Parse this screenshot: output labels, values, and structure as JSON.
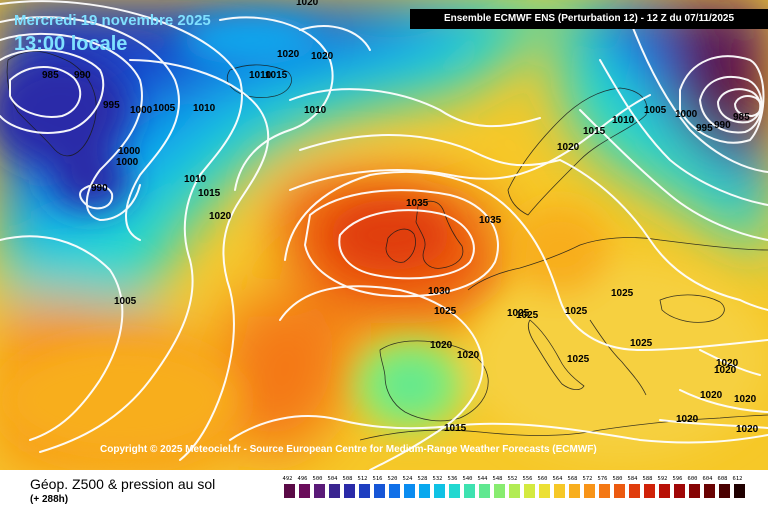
{
  "header": {
    "date_line": "Mercredi 19 novembre 2025",
    "local_time": "13:00 locale",
    "model_banner": "Ensemble ECMWF ENS  (Perturbation 12)  - 12 Z du 07/11/2025"
  },
  "copyright": "Copyright © 2025 Meteociel.fr - Source European Centre for Medium-Range Weather Forecasts (ECMWF)",
  "footer": {
    "product_title": "Géop. Z500 & pression au sol",
    "lead_time": "(+ 288h)"
  },
  "scale": {
    "values": [
      "492",
      "496",
      "500",
      "504",
      "508",
      "512",
      "516",
      "520",
      "524",
      "528",
      "532",
      "536",
      "540",
      "544",
      "548",
      "552",
      "556",
      "560",
      "564",
      "568",
      "572",
      "576",
      "580",
      "584",
      "588",
      "592",
      "596",
      "600",
      "604",
      "608",
      "612"
    ],
    "colors": [
      "#5a0a46",
      "#6a0c5a",
      "#5a1a78",
      "#3a2590",
      "#2a2aa8",
      "#1e3ec0",
      "#1656d6",
      "#1070e8",
      "#0a8cf0",
      "#08a8ee",
      "#10c2e4",
      "#22d8d0",
      "#3ee2b0",
      "#60e890",
      "#88ec70",
      "#b2ec54",
      "#d4ea40",
      "#ece034",
      "#f6c828",
      "#f8ae1e",
      "#f89418",
      "#f47814",
      "#ec5a10",
      "#e03c0c",
      "#d02208",
      "#b81006",
      "#a00606",
      "#860404",
      "#6a0202",
      "#4a0000",
      "#200000"
    ]
  },
  "map_labels": [
    {
      "text": "985"
    },
    {
      "text": "990"
    },
    {
      "text": "995"
    },
    {
      "text": "1000"
    },
    {
      "text": "1000"
    },
    {
      "text": "1000"
    },
    {
      "text": "990"
    },
    {
      "text": "1005"
    },
    {
      "text": "1010"
    },
    {
      "text": "1010"
    },
    {
      "text": "1015"
    },
    {
      "text": "1020"
    },
    {
      "text": "1020"
    },
    {
      "text": "1020"
    },
    {
      "text": "1010"
    },
    {
      "text": "1015"
    },
    {
      "text": "1020"
    },
    {
      "text": "1010"
    },
    {
      "text": "1035"
    },
    {
      "text": "1035"
    },
    {
      "text": "1020"
    },
    {
      "text": "1015"
    },
    {
      "text": "1010"
    },
    {
      "text": "1005"
    },
    {
      "text": "1000"
    },
    {
      "text": "995"
    },
    {
      "text": "990"
    },
    {
      "text": "985"
    },
    {
      "text": "1005"
    },
    {
      "text": "1030"
    },
    {
      "text": "1025"
    },
    {
      "text": "1025"
    },
    {
      "text": "1025"
    },
    {
      "text": "1025"
    },
    {
      "text": "1025"
    },
    {
      "text": "1020"
    },
    {
      "text": "1020"
    },
    {
      "text": "1025"
    },
    {
      "text": "1025"
    },
    {
      "text": "1020"
    },
    {
      "text": "1020"
    },
    {
      "text": "1020"
    },
    {
      "text": "1020"
    },
    {
      "text": "1020"
    },
    {
      "text": "1020"
    },
    {
      "text": "1015"
    }
  ]
}
